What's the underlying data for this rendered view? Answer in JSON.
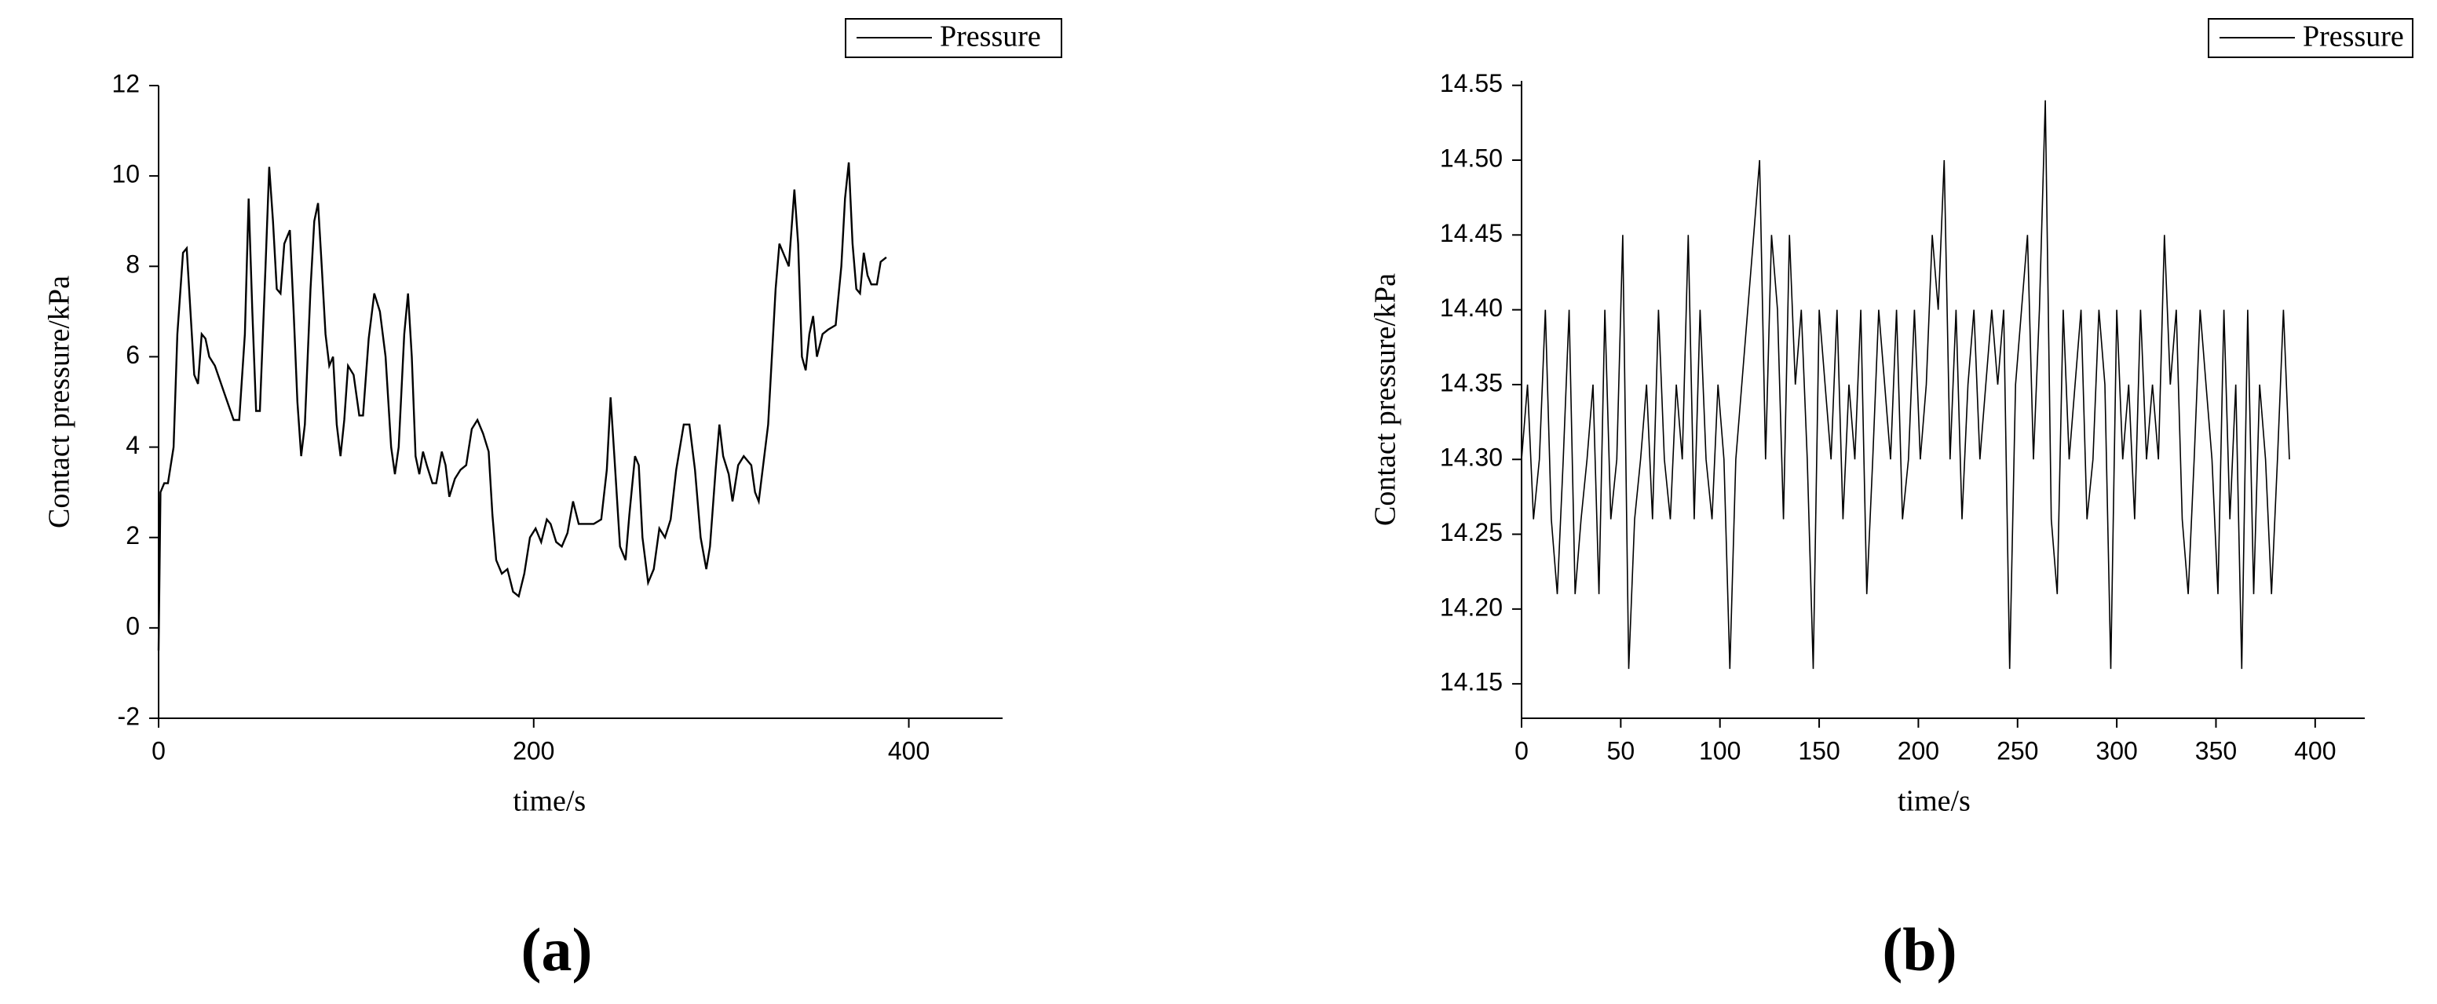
{
  "chart_data": [
    {
      "type": "line",
      "label": "(a)",
      "xlabel": "time/s",
      "ylabel": "Contact pressure/kPa",
      "xlim": [
        0,
        450
      ],
      "xticks": [
        0,
        200,
        400
      ],
      "ylim": [
        -2,
        12
      ],
      "yticks": [
        -2,
        0,
        2,
        4,
        6,
        8,
        10,
        12
      ],
      "series": [
        {
          "name": "Pressure",
          "color": "#000000",
          "x": [
            0,
            1,
            3,
            5,
            8,
            10,
            13,
            15,
            17,
            19,
            21,
            23,
            25,
            27,
            30,
            35,
            40,
            43,
            46,
            48,
            50,
            52,
            54,
            57,
            59,
            61,
            63,
            65,
            67,
            70,
            72,
            74,
            76,
            78,
            81,
            83,
            85,
            87,
            89,
            91,
            93,
            95,
            97,
            99,
            101,
            104,
            107,
            109,
            112,
            115,
            118,
            121,
            124,
            126,
            128,
            131,
            133,
            135,
            137,
            139,
            141,
            143,
            146,
            148,
            151,
            153,
            155,
            158,
            161,
            164,
            167,
            170,
            173,
            176,
            178,
            180,
            183,
            186,
            189,
            192,
            195,
            198,
            201,
            204,
            207,
            209,
            212,
            215,
            218,
            221,
            224,
            228,
            232,
            236,
            239,
            241,
            243,
            246,
            249,
            251,
            254,
            256,
            258,
            261,
            264,
            267,
            270,
            273,
            276,
            280,
            283,
            286,
            289,
            292,
            294,
            297,
            299,
            301,
            304,
            306,
            309,
            312,
            316,
            318,
            320,
            325,
            329,
            331,
            334,
            336,
            339,
            341,
            343,
            345,
            347,
            349,
            351,
            354,
            357,
            361,
            364,
            366,
            368,
            370,
            372,
            374,
            376,
            378,
            380,
            383,
            385,
            388
          ],
          "values": [
            -0.5,
            3.0,
            3.2,
            3.2,
            4,
            6.5,
            8.3,
            8.4,
            7,
            5.6,
            5.4,
            6.5,
            6.4,
            6,
            5.8,
            5.2,
            4.6,
            4.6,
            6.5,
            9.5,
            7,
            4.8,
            4.8,
            8,
            10.2,
            9,
            7.5,
            7.4,
            8.5,
            8.8,
            7,
            5,
            3.8,
            4.5,
            7.5,
            9,
            9.4,
            8,
            6.5,
            5.8,
            6,
            4.5,
            3.8,
            4.6,
            5.8,
            5.6,
            4.7,
            4.7,
            6.4,
            7.4,
            7,
            6,
            4,
            3.4,
            4,
            6.5,
            7.4,
            6,
            3.8,
            3.4,
            3.9,
            3.6,
            3.2,
            3.2,
            3.9,
            3.6,
            2.9,
            3.3,
            3.5,
            3.6,
            4.4,
            4.6,
            4.3,
            3.9,
            2.5,
            1.5,
            1.2,
            1.3,
            0.8,
            0.7,
            1.2,
            2.0,
            2.2,
            1.9,
            2.4,
            2.3,
            1.9,
            1.8,
            2.1,
            2.8,
            2.3,
            2.3,
            2.3,
            2.4,
            3.5,
            5.1,
            3.8,
            1.8,
            1.5,
            2.5,
            3.8,
            3.6,
            2,
            1.0,
            1.3,
            2.2,
            2.0,
            2.4,
            3.5,
            4.5,
            4.5,
            3.5,
            2,
            1.3,
            1.8,
            3.5,
            4.5,
            3.8,
            3.4,
            2.8,
            3.6,
            3.8,
            3.6,
            3.0,
            2.8,
            4.5,
            7.5,
            8.5,
            8.2,
            8,
            9.7,
            8.5,
            6,
            5.7,
            6.5,
            6.9,
            6,
            6.5,
            6.6,
            6.7,
            8,
            9.5,
            10.3,
            8.5,
            7.5,
            7.4,
            8.3,
            7.8,
            7.6,
            7.6,
            8.1,
            8.2
          ]
        }
      ]
    },
    {
      "type": "line",
      "label": "(b)",
      "xlabel": "time/s",
      "ylabel": "Contact pressure/kPa",
      "xlim": [
        0,
        425
      ],
      "xticks": [
        0,
        50,
        100,
        150,
        200,
        250,
        300,
        350,
        400
      ],
      "ylim": [
        14.127,
        14.553
      ],
      "yticks": [
        14.15,
        {
          "value": 14.2,
          "label": "14.20"
        },
        14.25,
        {
          "value": 14.3,
          "label": "14.30"
        },
        14.35,
        {
          "value": 14.4,
          "label": "14.40"
        },
        14.45,
        {
          "value": 14.5,
          "label": "14.50"
        },
        14.55
      ],
      "series": [
        {
          "name": "Pressure",
          "color": "#000000",
          "x": [
            0,
            3,
            6,
            9,
            12,
            15,
            18,
            21,
            24,
            27,
            30,
            33,
            36,
            39,
            42,
            45,
            48,
            51,
            54,
            57,
            60,
            63,
            66,
            69,
            72,
            75,
            78,
            81,
            84,
            87,
            90,
            93,
            96,
            99,
            102,
            105,
            108,
            111,
            114,
            117,
            120,
            123,
            126,
            129,
            132,
            135,
            138,
            141,
            144,
            147,
            150,
            153,
            156,
            159,
            162,
            165,
            168,
            171,
            174,
            177,
            180,
            183,
            186,
            189,
            192,
            195,
            198,
            201,
            204,
            207,
            210,
            213,
            216,
            219,
            222,
            225,
            228,
            231,
            234,
            237,
            240,
            243,
            246,
            249,
            252,
            255,
            258,
            261,
            264,
            267,
            270,
            273,
            276,
            279,
            282,
            285,
            288,
            291,
            294,
            297,
            300,
            303,
            306,
            309,
            312,
            315,
            318,
            321,
            324,
            327,
            330,
            333,
            336,
            339,
            342,
            345,
            348,
            351,
            354,
            357,
            360,
            363,
            366,
            369,
            372,
            375,
            378,
            381,
            384,
            387
          ],
          "values": [
            14.3,
            14.35,
            14.26,
            14.3,
            14.4,
            14.26,
            14.21,
            14.3,
            14.4,
            14.21,
            14.26,
            14.3,
            14.35,
            14.21,
            14.4,
            14.26,
            14.3,
            14.45,
            14.16,
            14.26,
            14.3,
            14.35,
            14.26,
            14.4,
            14.3,
            14.26,
            14.35,
            14.3,
            14.45,
            14.26,
            14.4,
            14.3,
            14.26,
            14.35,
            14.3,
            14.16,
            14.3,
            14.35,
            14.4,
            14.45,
            14.5,
            14.3,
            14.45,
            14.4,
            14.26,
            14.45,
            14.35,
            14.4,
            14.3,
            14.16,
            14.4,
            14.35,
            14.3,
            14.4,
            14.26,
            14.35,
            14.3,
            14.4,
            14.21,
            14.3,
            14.4,
            14.35,
            14.3,
            14.4,
            14.26,
            14.3,
            14.4,
            14.3,
            14.35,
            14.45,
            14.4,
            14.5,
            14.3,
            14.4,
            14.26,
            14.35,
            14.4,
            14.3,
            14.35,
            14.4,
            14.35,
            14.4,
            14.16,
            14.35,
            14.4,
            14.45,
            14.3,
            14.4,
            14.54,
            14.26,
            14.21,
            14.4,
            14.3,
            14.35,
            14.4,
            14.26,
            14.3,
            14.4,
            14.35,
            14.16,
            14.4,
            14.3,
            14.35,
            14.26,
            14.4,
            14.3,
            14.35,
            14.3,
            14.45,
            14.35,
            14.4,
            14.26,
            14.21,
            14.3,
            14.4,
            14.35,
            14.3,
            14.21,
            14.4,
            14.26,
            14.35,
            14.16,
            14.4,
            14.21,
            14.35,
            14.3,
            14.21,
            14.3,
            14.4,
            14.3
          ]
        }
      ]
    }
  ]
}
